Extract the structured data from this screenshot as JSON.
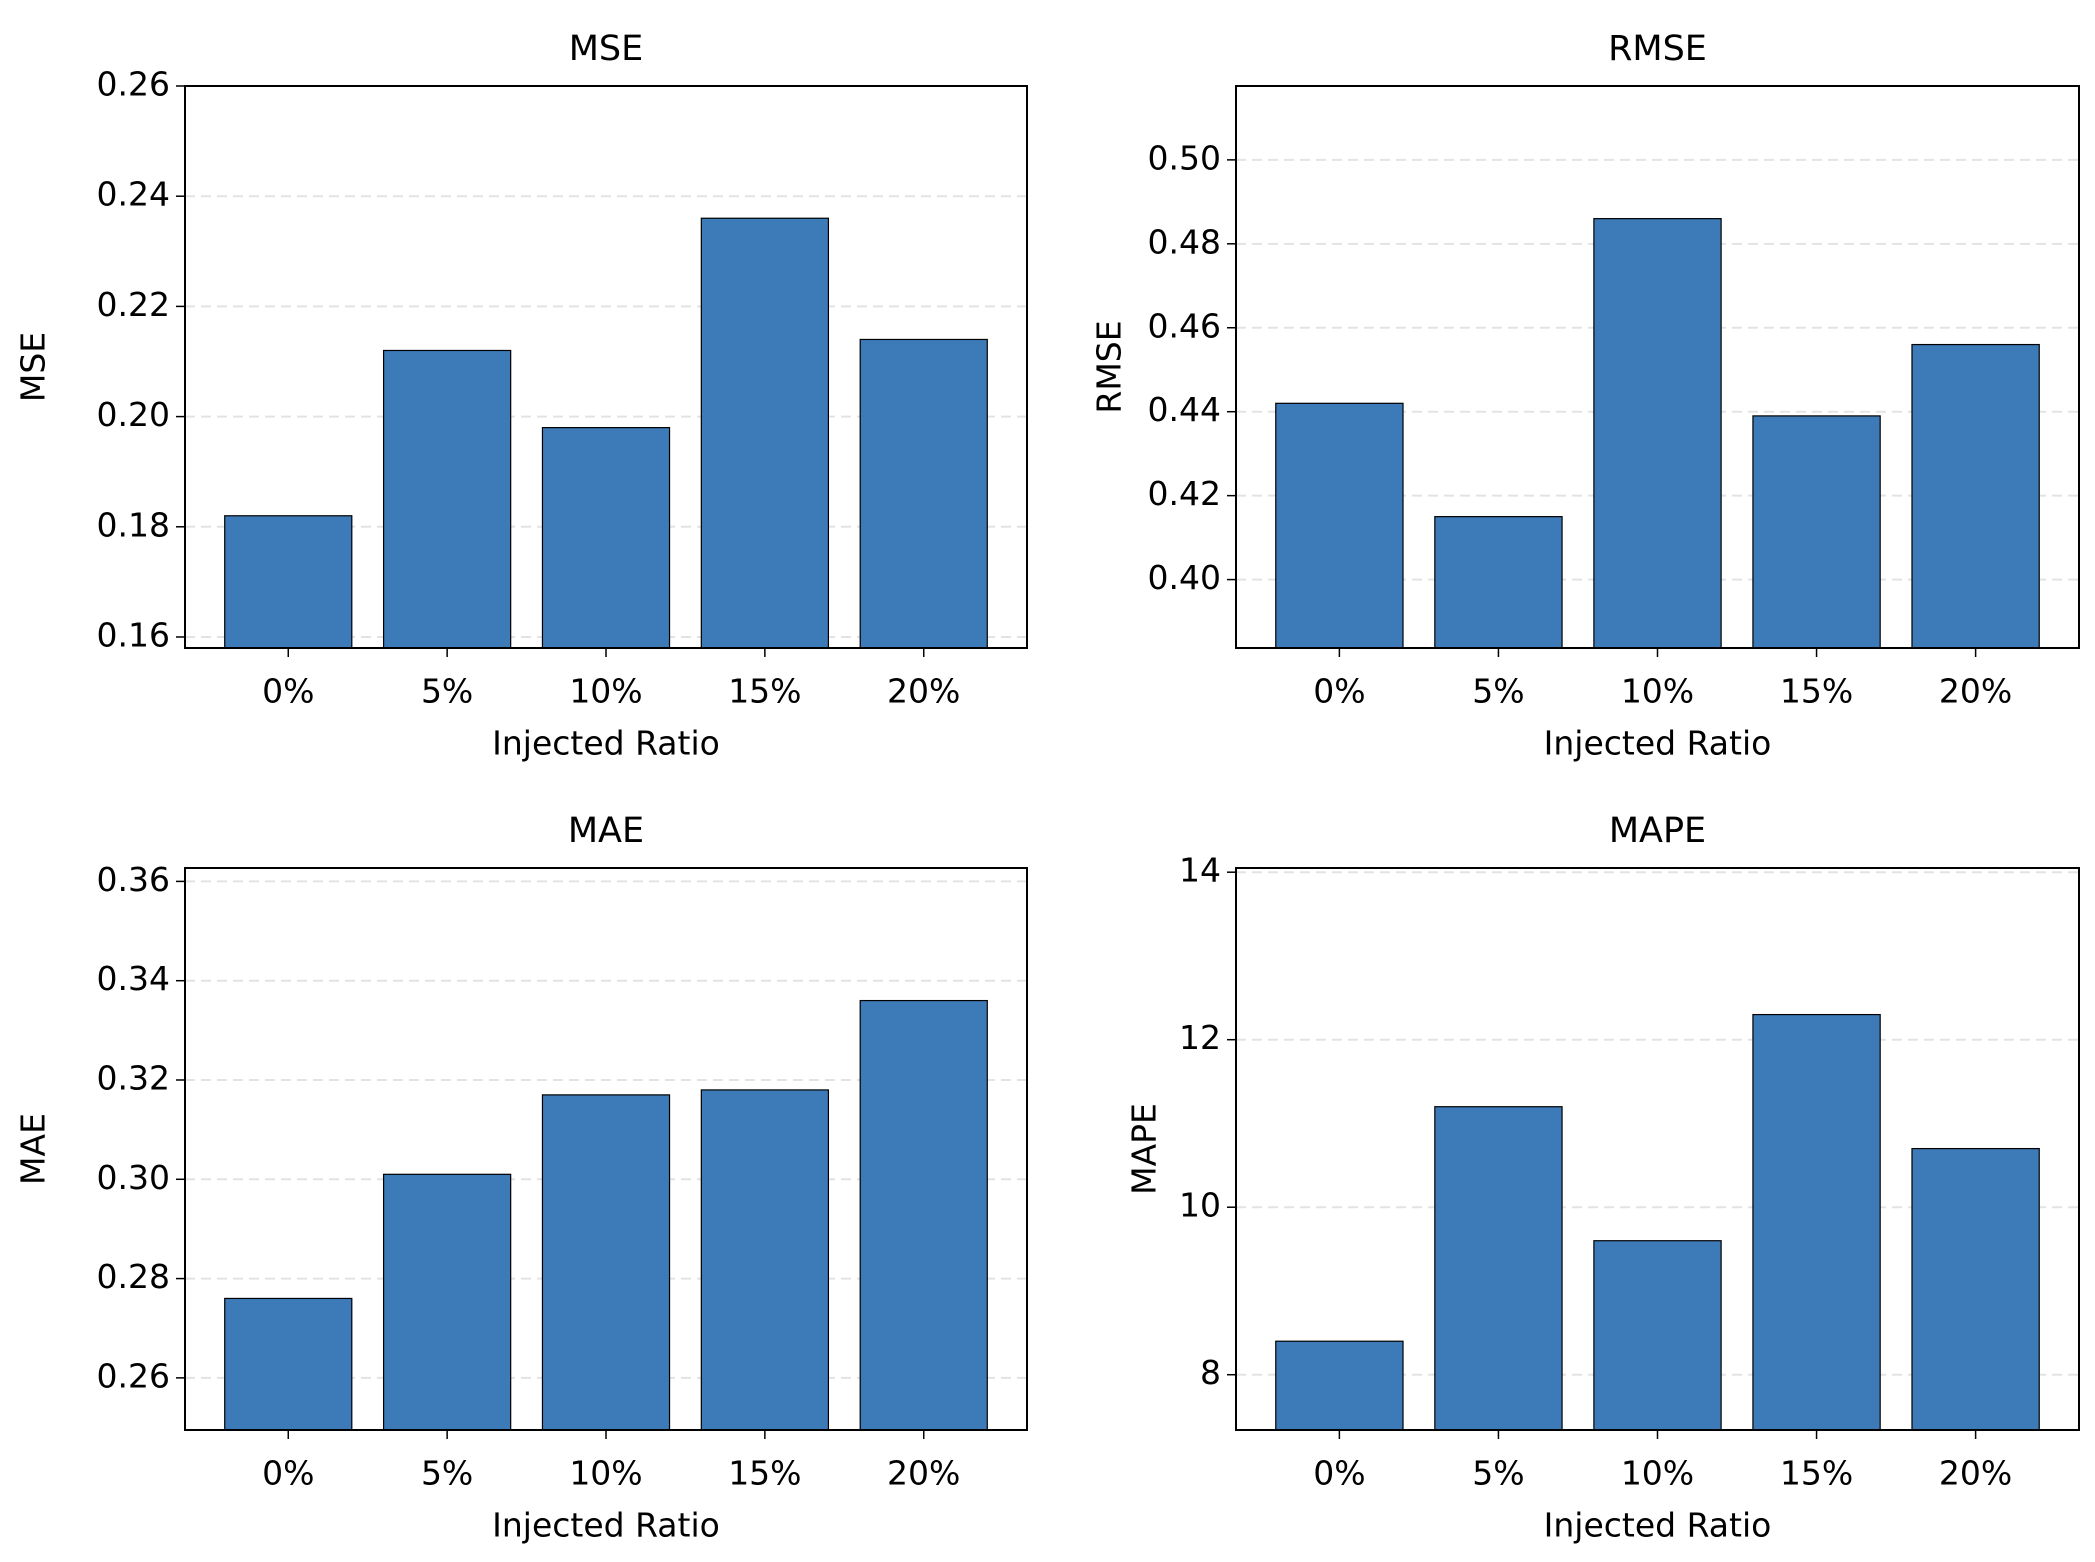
{
  "chart_data": [
    {
      "type": "bar",
      "title": "MSE",
      "xlabel": "Injected Ratio",
      "ylabel": "MSE",
      "categories": [
        "0%",
        "5%",
        "10%",
        "15%",
        "20%"
      ],
      "values": [
        0.182,
        0.212,
        0.198,
        0.236,
        0.214
      ],
      "color": "#3d7ab8",
      "ylim": [
        0.158,
        0.26
      ],
      "yticks": [
        0.16,
        0.18,
        {
          "value": 0.2,
          "label": "0.20"
        },
        0.22,
        0.24,
        0.26
      ],
      "grid": true
    },
    {
      "type": "bar",
      "title": "RMSE",
      "xlabel": "Injected Ratio",
      "ylabel": "RMSE",
      "categories": [
        "0%",
        "5%",
        "10%",
        "15%",
        "20%"
      ],
      "values": [
        0.442,
        0.415,
        0.486,
        0.439,
        0.456
      ],
      "color": "#3d7ab8",
      "ylim": [
        0.3837,
        0.5176
      ],
      "yticks": [
        {
          "value": 0.4,
          "label": "0.40"
        },
        0.42,
        0.44,
        0.46,
        0.48,
        {
          "value": 0.5,
          "label": "0.50"
        }
      ],
      "grid": true
    },
    {
      "type": "bar",
      "title": "MAE",
      "xlabel": "Injected Ratio",
      "ylabel": "MAE",
      "categories": [
        "0%",
        "5%",
        "10%",
        "15%",
        "20%"
      ],
      "values": [
        0.276,
        0.301,
        0.317,
        0.318,
        0.336
      ],
      "color": "#3d7ab8",
      "ylim": [
        0.2495,
        0.3627
      ],
      "yticks": [
        0.26,
        0.28,
        {
          "value": 0.3,
          "label": "0.30"
        },
        0.32,
        0.34,
        0.36
      ],
      "grid": true
    },
    {
      "type": "bar",
      "title": "MAPE",
      "xlabel": "Injected Ratio",
      "ylabel": "MAPE",
      "categories": [
        "0%",
        "5%",
        "10%",
        "15%",
        "20%"
      ],
      "values": [
        8.4,
        11.2,
        9.6,
        12.3,
        10.7
      ],
      "color": "#3d7ab8",
      "ylim": [
        7.34,
        14.05
      ],
      "yticks": [
        8,
        10,
        12,
        14
      ],
      "grid": true
    }
  ]
}
